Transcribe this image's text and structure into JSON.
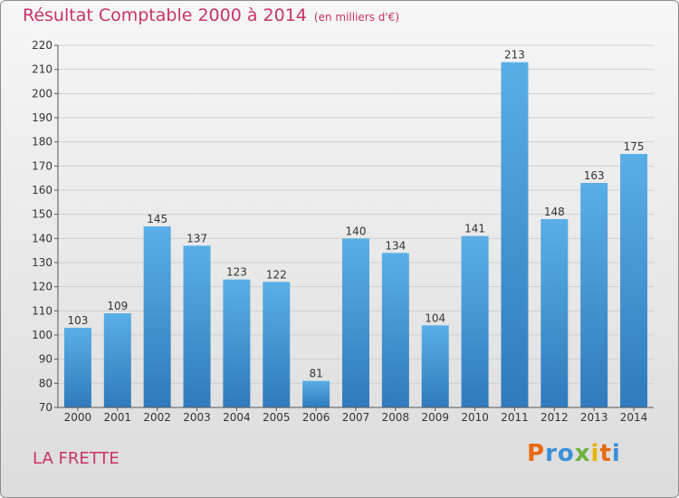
{
  "header": {
    "title": "Résultat Comptable 2000 à 2014",
    "subtitle": "(en milliers d'€)"
  },
  "footer": {
    "commune": "LA FRETTE",
    "logo_text": "Proxiti"
  },
  "colors": {
    "title": "#c8336a",
    "bar_top": "#5aaee6",
    "bar_bottom": "#2f7bbd",
    "logo_letters": [
      "#e86a10",
      "#3a8fd8",
      "#3a8fd8",
      "#6cb33e",
      "#e8b400",
      "#e86a10",
      "#3a8fd8"
    ]
  },
  "chart_data": {
    "type": "bar",
    "title": "Résultat Comptable 2000 à 2014",
    "categories": [
      "2000",
      "2001",
      "2002",
      "2003",
      "2004",
      "2005",
      "2006",
      "2007",
      "2008",
      "2009",
      "2010",
      "2011",
      "2012",
      "2013",
      "2014"
    ],
    "values": [
      103,
      109,
      145,
      137,
      123,
      122,
      81,
      140,
      134,
      104,
      141,
      213,
      148,
      163,
      175
    ],
    "ylim": [
      70,
      220
    ],
    "yticks": [
      70,
      80,
      90,
      100,
      110,
      120,
      130,
      140,
      150,
      160,
      170,
      180,
      190,
      200,
      210,
      220
    ],
    "grid": true,
    "xlabel": "",
    "ylabel": ""
  }
}
